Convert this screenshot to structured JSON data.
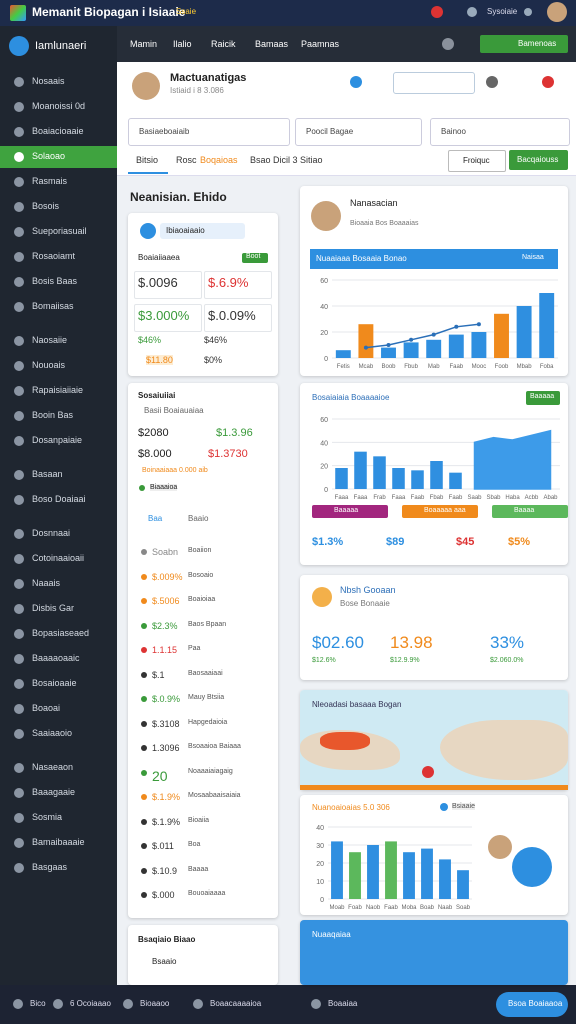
{
  "topbar": {
    "title": "Memanit Biopagan i Isiaaie",
    "badge": "Ssaie",
    "user": "Sysoiaie"
  },
  "sidebar": {
    "brand": "Iamlunaeri",
    "active": 3,
    "items": [
      "Nosaais",
      "Moanoissi 0d",
      "Boaiacioaaie",
      "Solaoao",
      "Rasmais",
      "Bosois",
      "Sueporiasuail",
      "Rosaoiamt",
      "Bosis Baas",
      "Bomaiisas",
      "Naosaiie",
      "Nouoais",
      "Rapaisiaiiaie",
      "Booin Bas",
      "Dosanpaiaie",
      "Basaan",
      "Boso Doaiaai",
      "Dosnnaai",
      "Cotoinaaioaii",
      "Naaais",
      "Disbis Gar",
      "Bopasiaseaed",
      "Baaaaoaaic",
      "Bosaioaaie",
      "Boaoai",
      "Saaiaaoio",
      "Nasaeaon",
      "Baaagaaie",
      "Sosmia",
      "Bamaibaaaie",
      "Basgaas"
    ]
  },
  "nav": {
    "items": [
      "Mamin",
      "Ilalio",
      "Raicik",
      "Bamaas",
      "Paamnas"
    ],
    "button": "Bamenoas"
  },
  "profile": {
    "name": "Mactuanatigas",
    "meta": "Istiaid i 8 3.086"
  },
  "filters": [
    "Basiaeboaiaib",
    "Poocil Bagae",
    "Bainoo"
  ],
  "tabs": [
    "Bitsio",
    "Rosc",
    "Boqaioas",
    "Bsao Dicil 3 Sitiao"
  ],
  "actions": [
    "Froiquc",
    "Bacqaiouss"
  ],
  "section": "Neanisian. Ehido",
  "summary": {
    "chip": "Ibiaoaiaaio",
    "label": "Boaiaiiaaea",
    "tag": "Boot",
    "stats": [
      "$.0096",
      "$.6.9%",
      "$3.000%",
      "$.0.09%",
      "$46%",
      "$46%",
      "$11.80",
      "$0%"
    ]
  },
  "list": {
    "title": "Sosaiuiiai",
    "subtitle": "Basii Boaiauaiaa",
    "stats": [
      "$2080",
      "$1.3.96",
      "$8.000",
      "$1.3730"
    ],
    "note": "Boinaaiaaa 0.000 aib",
    "badge": "Biaaaioa",
    "tabs": [
      "Baa",
      "Baaio"
    ],
    "rows": [
      [
        "Soabn",
        "Boaiion"
      ],
      [
        "$.009%",
        "Bosoaio"
      ],
      [
        "$.5006",
        "Boaioiaa"
      ],
      [
        "$2.3%",
        "Baos Bpaan"
      ],
      [
        "1.1.15",
        "Paa"
      ],
      [
        "$.1",
        "Baosaaiaai"
      ],
      [
        "$.0.9%",
        "Mauy Btsiia"
      ],
      [
        "$.3108",
        "Hapgedaioia"
      ],
      [
        "1.3096",
        "Bsoaaioa Baiaaa"
      ],
      [
        "20",
        "Noaaaiaiagaig"
      ],
      [
        "$.1.9%",
        "Mosaabaaisaiaia"
      ],
      [
        "$.1.9%",
        "Bioaiia"
      ],
      [
        "$.011",
        "Boa"
      ],
      [
        "$.10.9",
        "Baaaa"
      ],
      [
        "$.000",
        "Bouoaiaaaa"
      ]
    ]
  },
  "cards": {
    "person": {
      "name": "Nanasacian",
      "meta": "Bioaaia Bos Boaaaias"
    },
    "sales": {
      "title": "Bosaiaiaia Boaaaaioe",
      "button": "Baaaaa",
      "chips": [
        "Baaaaa",
        "Boaaaaa aaa",
        "Baaaa"
      ],
      "stats": [
        "$1.3%",
        "$89",
        "$45",
        "$5%"
      ]
    },
    "kpi": {
      "title": "Nbsh Gooaan",
      "subtitle": "Bose Bonaaie",
      "stats": [
        "$02.60",
        "13.98",
        "33%"
      ],
      "subs": [
        "$12.6%",
        "$12.9.9%",
        "$2.060.0%"
      ]
    },
    "map": {
      "title": "Nleoadasi basaaa Bogan"
    },
    "regional": {
      "title": "Nuanoaioaias 5.0 306",
      "tag": "Bsiaaie"
    },
    "footer": {
      "title": "Nuaaqaiaa"
    },
    "bottom_left": {
      "title": "Bsaqiaio Biaao",
      "item": "Bsaaio"
    }
  },
  "bottombar": [
    "Bico",
    "6 Ocoiaaao",
    "Bioaaoo",
    "Boaacaaaaioa",
    "Boaaiaa",
    "Bsoa Boaiaaoa"
  ],
  "chart_data": [
    {
      "type": "bar",
      "title": "Nuaaiaaa Bosaaia Bonao",
      "subtitle": "Naisaa",
      "categories": [
        "Fetis",
        "Mcab",
        "Boob",
        "Fbub",
        "Mab",
        "Faab",
        "Mooc",
        "Foob",
        "Mbab",
        "Foba"
      ],
      "series": [
        {
          "type": "bar",
          "colors": [
            "#2f8fe0",
            "#f08a1c",
            "#2f8fe0",
            "#2f8fe0",
            "#2f8fe0",
            "#2f8fe0",
            "#2f8fe0",
            "#f08a1c",
            "#2f8fe0",
            "#2f8fe0"
          ],
          "values": [
            6,
            26,
            8,
            12,
            14,
            18,
            20,
            34,
            40,
            50
          ]
        },
        {
          "type": "line",
          "color": "#2a6fb8",
          "values": [
            null,
            8,
            10,
            14,
            18,
            24,
            26,
            null,
            null,
            null
          ]
        }
      ],
      "ylim": [
        0,
        60
      ],
      "yticks": [
        0,
        20,
        40,
        60
      ]
    },
    {
      "type": "bar",
      "categories": [
        "Faaa",
        "Faaa",
        "Frab",
        "Faaa",
        "Faab",
        "Fbab",
        "Faab",
        "Saab",
        "Sbab",
        "Haba",
        "Acbb",
        "Abab"
      ],
      "series": [
        {
          "type": "bar",
          "color": "#2f8fe0",
          "values": [
            18,
            32,
            28,
            18,
            16,
            24,
            14,
            null,
            null,
            null,
            null,
            null
          ]
        },
        {
          "type": "area",
          "color": "#3d9be9",
          "values": [
            null,
            null,
            null,
            null,
            null,
            null,
            null,
            40,
            44,
            42,
            46,
            50
          ]
        }
      ],
      "ylim": [
        0,
        60
      ],
      "yticks": [
        0,
        20,
        40,
        60
      ]
    },
    {
      "type": "bar",
      "categories": [
        "Moab",
        "Foab",
        "Naob",
        "Faab",
        "Moba",
        "Boab",
        "Naab",
        "Soab"
      ],
      "series": [
        {
          "type": "bar",
          "colors": [
            "#2f8fe0",
            "#5cb85c",
            "#2f8fe0",
            "#5cb85c",
            "#2f8fe0",
            "#2f8fe0",
            "#2f8fe0",
            "#2f8fe0"
          ],
          "values": [
            32,
            26,
            30,
            32,
            26,
            28,
            22,
            16
          ]
        }
      ],
      "ylim": [
        0,
        40
      ],
      "yticks": [
        0,
        10,
        20,
        30,
        40
      ]
    }
  ]
}
